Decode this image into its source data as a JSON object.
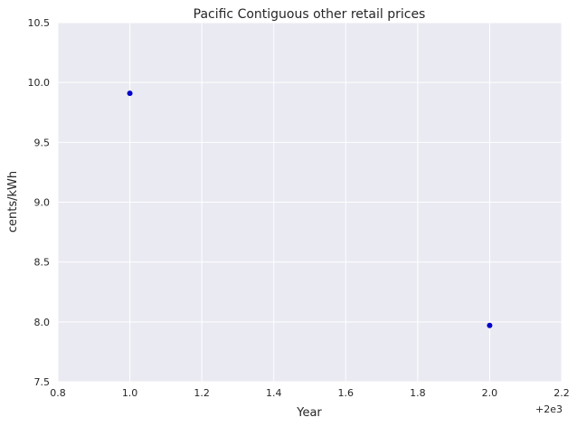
{
  "chart_data": {
    "type": "scatter",
    "title": "Pacific Contiguous   other retail prices",
    "xlabel": "Year",
    "ylabel": "cents/kWh",
    "x_offset_label": "+2e3",
    "xlim": [
      0.8,
      2.2
    ],
    "ylim": [
      7.5,
      10.5
    ],
    "x_ticks": [
      0.8,
      1.0,
      1.2,
      1.4,
      1.6,
      1.8,
      2.0,
      2.2
    ],
    "x_tick_labels": [
      "0.8",
      "1.0",
      "1.2",
      "1.4",
      "1.6",
      "1.8",
      "2.0",
      "2.2"
    ],
    "y_ticks": [
      7.5,
      8.0,
      8.5,
      9.0,
      9.5,
      10.0,
      10.5
    ],
    "y_tick_labels": [
      "7.5",
      "8.0",
      "8.5",
      "9.0",
      "9.5",
      "10.0",
      "10.5"
    ],
    "grid": true,
    "point_color": "#0000cc",
    "plot_background": "#eaeaf2",
    "grid_color": "#ffffff",
    "points": [
      {
        "x": 1.0,
        "y": 9.91
      },
      {
        "x": 2.0,
        "y": 7.97
      }
    ]
  }
}
